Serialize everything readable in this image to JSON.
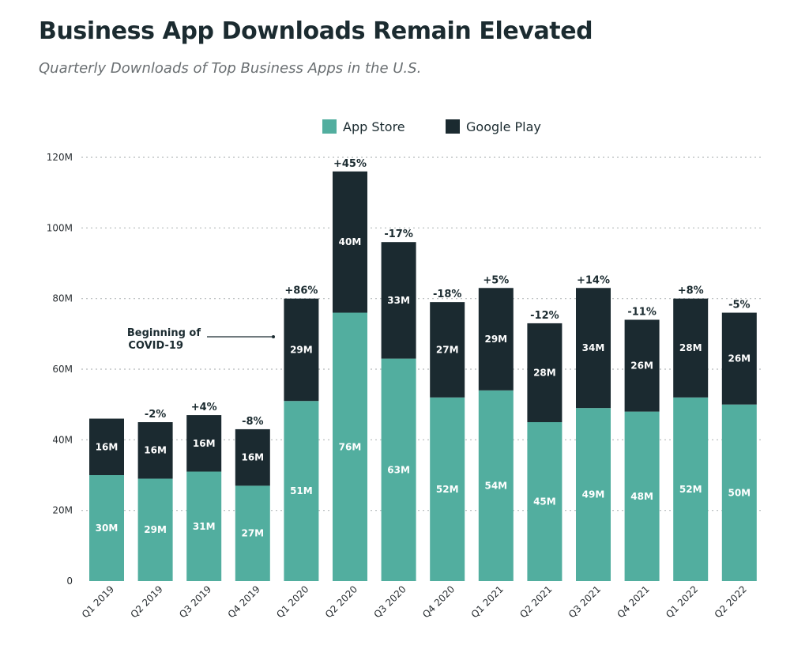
{
  "header": {
    "title": "Business App Downloads Remain Elevated",
    "subtitle": "Quarterly Downloads of Top Business Apps in the U.S."
  },
  "colors": {
    "app_store": "#52ae9f",
    "google_play": "#1b2a30",
    "grid": "#b5b9bb"
  },
  "chart_data": {
    "type": "bar",
    "stacked": true,
    "categories": [
      "Q1 2019",
      "Q2 2019",
      "Q3 2019",
      "Q4 2019",
      "Q1 2020",
      "Q2 2020",
      "Q3 2020",
      "Q4 2020",
      "Q1 2021",
      "Q2 2021",
      "Q3 2021",
      "Q4 2021",
      "Q1 2022",
      "Q2 2022"
    ],
    "series": [
      {
        "name": "App Store",
        "values": [
          30,
          29,
          31,
          27,
          51,
          76,
          63,
          52,
          54,
          45,
          49,
          48,
          52,
          50
        ],
        "labels": [
          "30M",
          "29M",
          "31M",
          "27M",
          "51M",
          "76M",
          "63M",
          "52M",
          "54M",
          "45M",
          "49M",
          "48M",
          "52M",
          "50M"
        ]
      },
      {
        "name": "Google Play",
        "values": [
          16,
          16,
          16,
          16,
          29,
          40,
          33,
          27,
          29,
          28,
          34,
          26,
          28,
          26
        ],
        "labels": [
          "16M",
          "16M",
          "16M",
          "16M",
          "29M",
          "40M",
          "33M",
          "27M",
          "29M",
          "28M",
          "34M",
          "26M",
          "28M",
          "26M"
        ]
      }
    ],
    "change_labels": [
      "",
      "-2%",
      "+4%",
      "-8%",
      "+86%",
      "+45%",
      "-17%",
      "-18%",
      "+5%",
      "-12%",
      "+14%",
      "-11%",
      "+8%",
      "-5%"
    ],
    "yticks": [
      "0",
      "20M",
      "40M",
      "60M",
      "80M",
      "100M",
      "120M"
    ],
    "ylim": [
      0,
      120
    ],
    "grid": true,
    "legend_position": "top-center",
    "annotation": {
      "text_line1": "Beginning of",
      "text_line2": "COVID-19",
      "category": "Q1 2020"
    }
  }
}
